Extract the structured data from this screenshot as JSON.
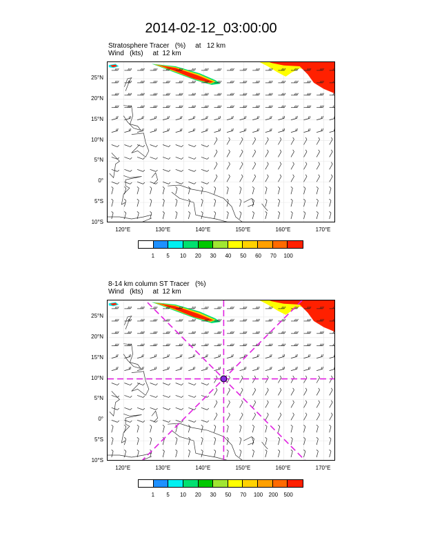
{
  "title": "2014-02-12_03:00:00",
  "panel1": {
    "title_line1": "Stratosphere Tracer   (%)     at   12 km",
    "title_line2": "Wind   (kts)     at  12 km",
    "colorbar": {
      "colors": [
        "#ffffff",
        "#1e90ff",
        "#00f0f0",
        "#00e070",
        "#00c800",
        "#a0e632",
        "#ffff00",
        "#ffd200",
        "#ffa000",
        "#ff6a00",
        "#ff2000"
      ],
      "labels": [
        "1",
        "5",
        "10",
        "20",
        "30",
        "40",
        "50",
        "60",
        "70",
        "100"
      ]
    }
  },
  "panel2": {
    "title_line1": "8-14 km column ST Tracer   (%)",
    "title_line2": "Wind   (kts)     at  12 km",
    "colorbar": {
      "colors": [
        "#ffffff",
        "#1e90ff",
        "#00f0f0",
        "#00e070",
        "#00c800",
        "#a0e632",
        "#ffff00",
        "#ffd200",
        "#ffa000",
        "#ff6a00",
        "#ff2000"
      ],
      "labels": [
        "1",
        "5",
        "10",
        "20",
        "30",
        "50",
        "70",
        "100",
        "200",
        "500"
      ]
    },
    "cross_marker": {
      "lon": 145,
      "lat": 10
    }
  },
  "axes": {
    "lat_labels": [
      "25°N",
      "20°N",
      "15°N",
      "10°N",
      "5°N",
      "0°",
      "5°S",
      "10°S"
    ],
    "lat_values": [
      25,
      20,
      15,
      10,
      5,
      0,
      -5,
      -10
    ],
    "lon_labels": [
      "120°E",
      "130°E",
      "140°E",
      "150°E",
      "160°E",
      "170°E"
    ],
    "lon_values": [
      120,
      130,
      140,
      150,
      160,
      170
    ],
    "lon_range": [
      116,
      173
    ],
    "lat_range": [
      -10,
      29
    ]
  },
  "colors": {
    "tracer_high": "#ff2000",
    "tracer_mid": "#ffd200",
    "cross_lines": "#e020e0"
  }
}
